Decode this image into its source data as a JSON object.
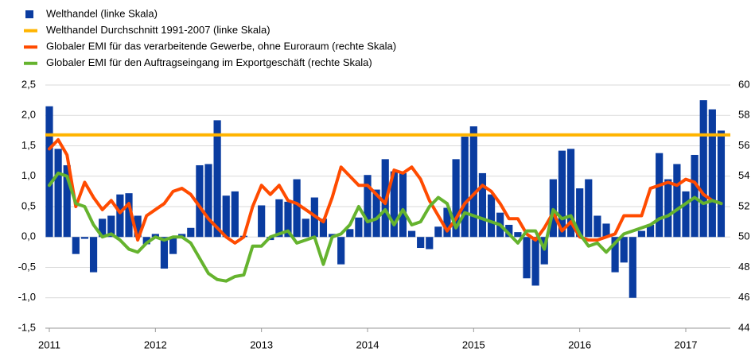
{
  "chart_data": {
    "type": "bar-line",
    "categories": [
      "2011",
      null,
      null,
      null,
      null,
      null,
      null,
      null,
      null,
      null,
      null,
      null,
      "2012",
      null,
      null,
      null,
      null,
      null,
      null,
      null,
      null,
      null,
      null,
      null,
      "2013",
      null,
      null,
      null,
      null,
      null,
      null,
      null,
      null,
      null,
      null,
      null,
      "2014",
      null,
      null,
      null,
      null,
      null,
      null,
      null,
      null,
      null,
      null,
      null,
      "2015",
      null,
      null,
      null,
      null,
      null,
      null,
      null,
      null,
      null,
      null,
      null,
      "2016",
      null,
      null,
      null,
      null,
      null,
      null,
      null,
      null,
      null,
      null,
      null,
      "2017",
      null,
      null,
      null,
      null
    ],
    "series": [
      {
        "name": "Welthandel (linke Skala)",
        "type": "bar",
        "color": "#0a3ca0",
        "values": [
          2.15,
          1.45,
          1.18,
          -0.28,
          -0.03,
          -0.58,
          0.3,
          0.35,
          0.7,
          0.72,
          0.35,
          -0.12,
          0.05,
          -0.52,
          -0.28,
          0.05,
          0.15,
          1.18,
          1.2,
          1.92,
          0.68,
          0.75,
          0.02,
          0.0,
          0.52,
          -0.05,
          0.62,
          0.58,
          0.95,
          0.3,
          0.65,
          0.3,
          0.05,
          -0.45,
          0.13,
          0.32,
          1.02,
          0.78,
          1.28,
          1.08,
          1.05,
          0.1,
          -0.18,
          -0.2,
          0.17,
          0.48,
          1.28,
          1.65,
          1.82,
          1.05,
          0.7,
          0.4,
          0.2,
          0.08,
          -0.68,
          -0.8,
          -0.45,
          0.95,
          1.42,
          1.45,
          0.8,
          0.95,
          0.35,
          0.22,
          -0.58,
          -0.42,
          -1.0,
          0.1,
          0.2,
          1.38,
          0.95,
          1.2,
          0.75,
          1.35,
          2.25,
          2.1,
          1.75
        ]
      },
      {
        "name": "Welthandel Durchschnitt 1991-2007 (linke Skala)",
        "type": "hline",
        "color": "#ffb400",
        "value": 1.68
      },
      {
        "name": "Globaler EMI für das verarbeitende Gewerbe, ohne Euroraum (rechte Skala)",
        "type": "line",
        "axis": "y2",
        "color": "#ff4b00",
        "values": [
          55.8,
          56.4,
          55.4,
          52.0,
          53.6,
          52.6,
          51.8,
          52.4,
          51.6,
          52.2,
          49.8,
          51.4,
          51.8,
          52.2,
          53.0,
          53.2,
          52.8,
          52.0,
          51.2,
          50.6,
          50.0,
          49.6,
          50.0,
          52.0,
          53.4,
          52.8,
          53.4,
          52.4,
          52.2,
          51.8,
          51.4,
          51.0,
          52.6,
          54.6,
          54.0,
          53.4,
          53.4,
          52.8,
          52.2,
          54.4,
          54.2,
          54.6,
          53.8,
          52.4,
          51.4,
          50.4,
          51.2,
          52.2,
          52.8,
          53.4,
          53.0,
          52.2,
          51.2,
          51.2,
          50.2,
          49.8,
          50.6,
          51.6,
          50.4,
          51.0,
          50.0,
          49.8,
          49.8,
          50.0,
          50.2,
          51.4,
          51.4,
          51.4,
          53.2,
          53.4,
          53.6,
          53.4,
          53.8,
          53.6,
          52.8,
          52.4,
          52.2
        ]
      },
      {
        "name": "Globaler EMI für den Auftragseingang im Exportgeschäft (rechte Skala)",
        "type": "line",
        "axis": "y2",
        "color": "#65b32e",
        "values": [
          53.4,
          54.2,
          54.0,
          52.2,
          52.0,
          50.8,
          50.0,
          50.2,
          49.8,
          49.2,
          49.0,
          49.6,
          50.0,
          49.8,
          50.0,
          50.0,
          49.6,
          48.6,
          47.6,
          47.2,
          47.1,
          47.4,
          47.5,
          49.4,
          49.4,
          50.0,
          50.2,
          50.4,
          49.6,
          49.8,
          50.0,
          48.2,
          50.0,
          50.2,
          50.8,
          52.0,
          51.0,
          51.2,
          51.8,
          50.8,
          51.8,
          50.8,
          51.0,
          52.0,
          52.6,
          52.2,
          50.6,
          51.6,
          51.4,
          51.2,
          51.0,
          50.8,
          50.2,
          49.6,
          50.4,
          50.4,
          49.2,
          51.8,
          51.2,
          51.4,
          50.2,
          49.4,
          49.6,
          49.0,
          49.6,
          50.2,
          50.4,
          50.6,
          50.8,
          51.2,
          51.4,
          51.8,
          52.2,
          52.6,
          52.2,
          52.4,
          52.2
        ]
      }
    ],
    "ylim": [
      -1.5,
      2.5
    ],
    "yticks": [
      {
        "value": -1.5,
        "label": "-1,5"
      },
      {
        "value": -1,
        "label": "-1,0"
      },
      {
        "value": -0.5,
        "label": "-0,5"
      },
      {
        "value": 0,
        "label": "0,0"
      },
      {
        "value": 0.5,
        "label": "0,5"
      },
      {
        "value": 1,
        "label": "1,0"
      },
      {
        "value": 1.5,
        "label": "1,5"
      },
      {
        "value": 2,
        "label": "2,0"
      },
      {
        "value": 2.5,
        "label": "2,5"
      }
    ],
    "y2lim": [
      44,
      60
    ],
    "y2ticks": [
      44,
      46,
      48,
      50,
      52,
      54,
      56,
      58,
      60
    ],
    "grid": true,
    "legend": "top-left"
  }
}
